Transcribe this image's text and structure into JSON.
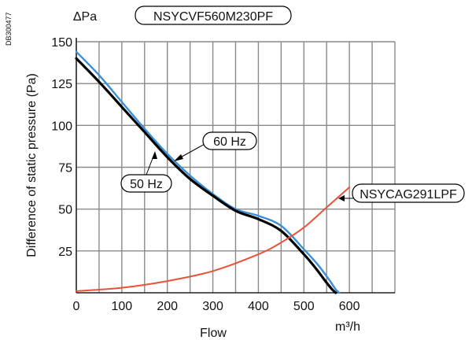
{
  "doc_code": "DB300477",
  "chart_data": {
    "type": "line",
    "title": "NSYCVF560M230PF",
    "ylabel": "Difference of static pressure (Pa)",
    "y_unit": "ΔPa",
    "xlabel": "Flow",
    "x_unit": "m³/h",
    "xlim": [
      0,
      700
    ],
    "ylim": [
      0,
      150
    ],
    "x_ticks": [
      0,
      100,
      200,
      300,
      400,
      500,
      600
    ],
    "y_ticks": [
      25,
      50,
      75,
      100,
      125,
      150
    ],
    "grid": true,
    "series": [
      {
        "name": "60 Hz",
        "color": "#3a8fd8",
        "x": [
          0,
          50,
          100,
          150,
          200,
          250,
          300,
          350,
          400,
          450,
          500,
          530,
          555,
          570,
          578
        ],
        "y": [
          144,
          130,
          114,
          98,
          83,
          70,
          59,
          50,
          46,
          40,
          26,
          17,
          8,
          2,
          0
        ]
      },
      {
        "name": "50 Hz",
        "color": "#000000",
        "x": [
          0,
          50,
          100,
          150,
          200,
          250,
          300,
          350,
          400,
          450,
          500,
          525,
          550,
          562,
          570
        ],
        "y": [
          140,
          126,
          111,
          96,
          81,
          68,
          58,
          49,
          44,
          37,
          23,
          15,
          6,
          2,
          0
        ]
      },
      {
        "name": "NSYCAG291LPF",
        "color": "#e8533a",
        "x": [
          0,
          100,
          200,
          300,
          400,
          450,
          500,
          550,
          600
        ],
        "y": [
          1,
          3,
          7,
          13,
          23,
          30,
          39,
          51,
          63
        ]
      }
    ]
  }
}
